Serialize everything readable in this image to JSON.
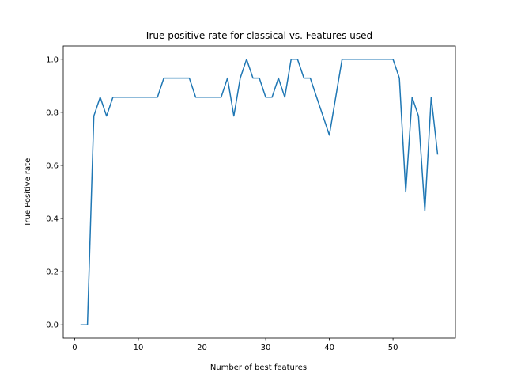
{
  "chart_data": {
    "type": "line",
    "title": "True positive rate for classical vs. Features used",
    "xlabel": "Number of best features",
    "ylabel": "True Positive rate",
    "xlim": [
      -1.8,
      59.8
    ],
    "ylim": [
      -0.05,
      1.05
    ],
    "xticks": [
      0,
      10,
      20,
      30,
      40,
      50
    ],
    "yticks": [
      0.0,
      0.2,
      0.4,
      0.6,
      0.8,
      1.0
    ],
    "xtick_labels": [
      "0",
      "10",
      "20",
      "30",
      "40",
      "50"
    ],
    "ytick_labels": [
      "0.0",
      "0.2",
      "0.4",
      "0.6",
      "0.8",
      "1.0"
    ],
    "grid": false,
    "series": [
      {
        "color": "#1f77b4",
        "x": [
          1,
          2,
          3,
          4,
          5,
          6,
          7,
          8,
          9,
          10,
          11,
          12,
          13,
          14,
          15,
          16,
          17,
          18,
          19,
          20,
          21,
          22,
          23,
          24,
          25,
          26,
          27,
          28,
          29,
          30,
          31,
          32,
          33,
          34,
          35,
          36,
          37,
          38,
          39,
          40,
          41,
          42,
          43,
          44,
          45,
          46,
          47,
          48,
          49,
          50,
          51,
          52,
          53,
          54,
          55,
          56,
          57
        ],
        "y": [
          0.0,
          0.0,
          0.786,
          0.857,
          0.786,
          0.857,
          0.857,
          0.857,
          0.857,
          0.857,
          0.857,
          0.857,
          0.857,
          0.929,
          0.929,
          0.929,
          0.929,
          0.929,
          0.857,
          0.857,
          0.857,
          0.857,
          0.857,
          0.929,
          0.786,
          0.929,
          1.0,
          0.929,
          0.929,
          0.857,
          0.857,
          0.929,
          0.857,
          1.0,
          1.0,
          0.929,
          0.929,
          0.857,
          0.786,
          0.714,
          0.857,
          1.0,
          1.0,
          1.0,
          1.0,
          1.0,
          1.0,
          1.0,
          1.0,
          1.0,
          0.929,
          0.5,
          0.857,
          0.786,
          0.429,
          0.857,
          0.643
        ]
      }
    ]
  }
}
